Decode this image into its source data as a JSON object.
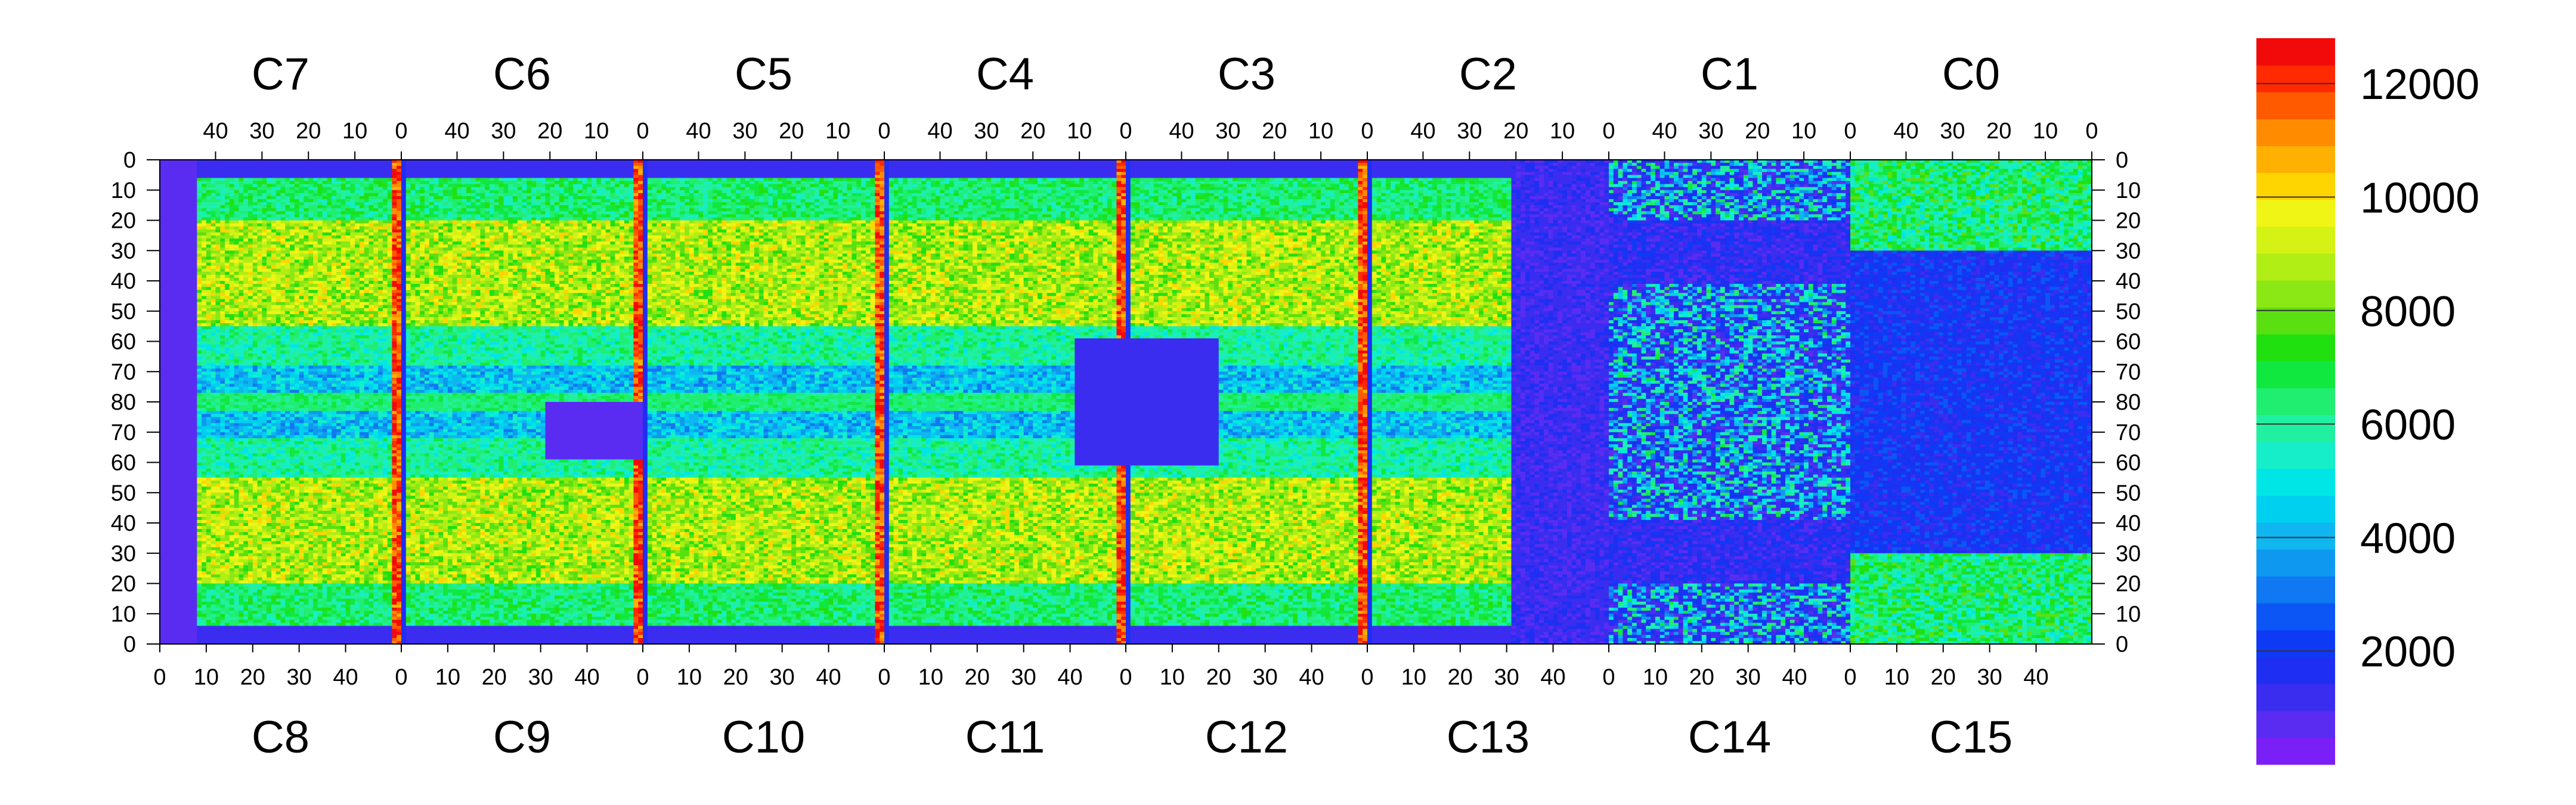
{
  "chart_data": {
    "type": "heatmap",
    "title": "",
    "top_chips": [
      "C7",
      "C6",
      "C5",
      "C4",
      "C3",
      "C2",
      "C1",
      "C0"
    ],
    "bottom_chips": [
      "C8",
      "C9",
      "C10",
      "C11",
      "C12",
      "C13",
      "C14",
      "C15"
    ],
    "top_x_tick_labels": [
      "40",
      "30",
      "20",
      "10",
      "0"
    ],
    "bottom_x_tick_labels": [
      "0",
      "10",
      "20",
      "30",
      "40"
    ],
    "y_tick_labels": [
      "0",
      "10",
      "20",
      "30",
      "40",
      "50",
      "60",
      "70",
      "80",
      "70",
      "60",
      "50",
      "40",
      "30",
      "20",
      "10",
      "0"
    ],
    "colorbar": {
      "min": 0,
      "max": 12800,
      "tick_labels": [
        "2000",
        "4000",
        "6000",
        "8000",
        "10000",
        "12000"
      ],
      "tick_values": [
        2000,
        4000,
        6000,
        8000,
        10000,
        12000
      ],
      "colors": [
        "#7a1ff5",
        "#5a2cf2",
        "#3b2df0",
        "#1f2ff2",
        "#0f3af5",
        "#0b56f5",
        "#0f78f2",
        "#0f98f0",
        "#0fb6f0",
        "#00d0f0",
        "#00e6e6",
        "#15eec8",
        "#20f0a0",
        "#20ee70",
        "#10e840",
        "#20e010",
        "#5ae010",
        "#8ce815",
        "#b0ee15",
        "#d5f215",
        "#f0f515",
        "#ffd500",
        "#ffb000",
        "#ff8c00",
        "#ff5a00",
        "#ff2a00",
        "#f20a0a"
      ]
    },
    "description_regions": {
      "chips_per_row": 8,
      "columns_per_chip": 52,
      "rows_per_half": 80
    }
  }
}
